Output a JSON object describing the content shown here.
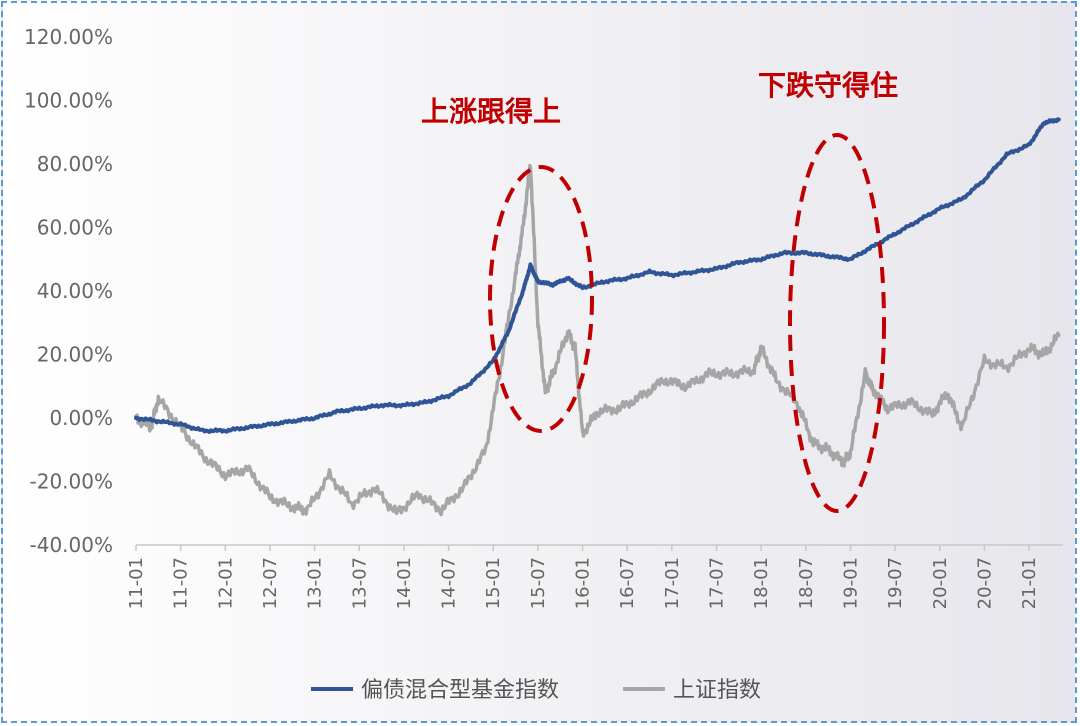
{
  "chart_data": {
    "type": "line",
    "x_ticks": [
      "11-01",
      "11-07",
      "12-01",
      "12-07",
      "13-01",
      "13-07",
      "14-01",
      "14-07",
      "15-01",
      "15-07",
      "16-01",
      "16-07",
      "17-01",
      "17-07",
      "18-01",
      "18-07",
      "19-01",
      "19-07",
      "20-01",
      "20-07",
      "21-01"
    ],
    "y_ticks": [
      "120.00%",
      "100.00%",
      "80.00%",
      "60.00%",
      "40.00%",
      "20.00%",
      "0.00%",
      "-20.00%",
      "-40.00%"
    ],
    "ylim": [
      -40,
      120
    ],
    "grid": false,
    "legend_position": "bottom",
    "colors": {
      "fund": "#2f5597",
      "index": "#a6a6a6",
      "annotation": "#c00000"
    },
    "annotations": [
      "上涨跟得上",
      "下跌守得住"
    ],
    "series": [
      {
        "name": "偏债混合型基金指数",
        "x": [
          "2011-01",
          "2011-04",
          "2011-07",
          "2011-10",
          "2012-01",
          "2012-04",
          "2012-07",
          "2012-10",
          "2013-01",
          "2013-04",
          "2013-07",
          "2013-10",
          "2014-01",
          "2014-04",
          "2014-07",
          "2014-10",
          "2015-01",
          "2015-03",
          "2015-05",
          "2015-06",
          "2015-07",
          "2015-09",
          "2015-11",
          "2016-01",
          "2016-04",
          "2016-07",
          "2016-10",
          "2017-01",
          "2017-04",
          "2017-07",
          "2017-10",
          "2018-01",
          "2018-04",
          "2018-07",
          "2018-10",
          "2019-01",
          "2019-04",
          "2019-07",
          "2019-10",
          "2020-01",
          "2020-04",
          "2020-07",
          "2020-10",
          "2021-01",
          "2021-03",
          "2021-05"
        ],
        "values": [
          0,
          -1,
          -2,
          -4,
          -4,
          -3,
          -2,
          -1,
          0,
          2,
          3,
          4,
          4,
          5,
          7,
          11,
          18,
          27,
          40,
          48,
          43,
          42,
          44,
          41,
          43,
          44,
          46,
          45,
          46,
          47,
          49,
          50,
          52,
          52,
          51,
          50,
          54,
          58,
          62,
          66,
          69,
          75,
          83,
          86,
          93,
          94
        ]
      },
      {
        "name": "上证指数",
        "x": [
          "2011-01",
          "2011-03",
          "2011-04",
          "2011-07",
          "2011-10",
          "2012-01",
          "2012-04",
          "2012-07",
          "2012-10",
          "2012-12",
          "2013-03",
          "2013-06",
          "2013-09",
          "2013-12",
          "2014-03",
          "2014-06",
          "2014-09",
          "2014-12",
          "2015-02",
          "2015-04",
          "2015-05",
          "2015-06",
          "2015-07",
          "2015-08",
          "2015-09",
          "2015-11",
          "2015-12",
          "2016-01",
          "2016-03",
          "2016-06",
          "2016-09",
          "2016-12",
          "2017-03",
          "2017-06",
          "2017-09",
          "2017-12",
          "2018-01",
          "2018-03",
          "2018-06",
          "2018-08",
          "2018-10",
          "2018-12",
          "2019-01",
          "2019-03",
          "2019-04",
          "2019-06",
          "2019-09",
          "2019-12",
          "2020-02",
          "2020-04",
          "2020-07",
          "2020-10",
          "2021-01",
          "2021-03",
          "2021-05"
        ],
        "values": [
          0,
          -3,
          6,
          -3,
          -12,
          -18,
          -16,
          -25,
          -28,
          -29,
          -18,
          -27,
          -22,
          -30,
          -24,
          -29,
          -22,
          -10,
          16,
          45,
          60,
          80,
          30,
          8,
          14,
          27,
          22,
          -5,
          2,
          3,
          7,
          12,
          10,
          14,
          14,
          15,
          22,
          12,
          4,
          -8,
          -10,
          -14,
          -11,
          14,
          9,
          3,
          5,
          1,
          8,
          -3,
          18,
          16,
          22,
          20,
          26
        ]
      }
    ]
  }
}
